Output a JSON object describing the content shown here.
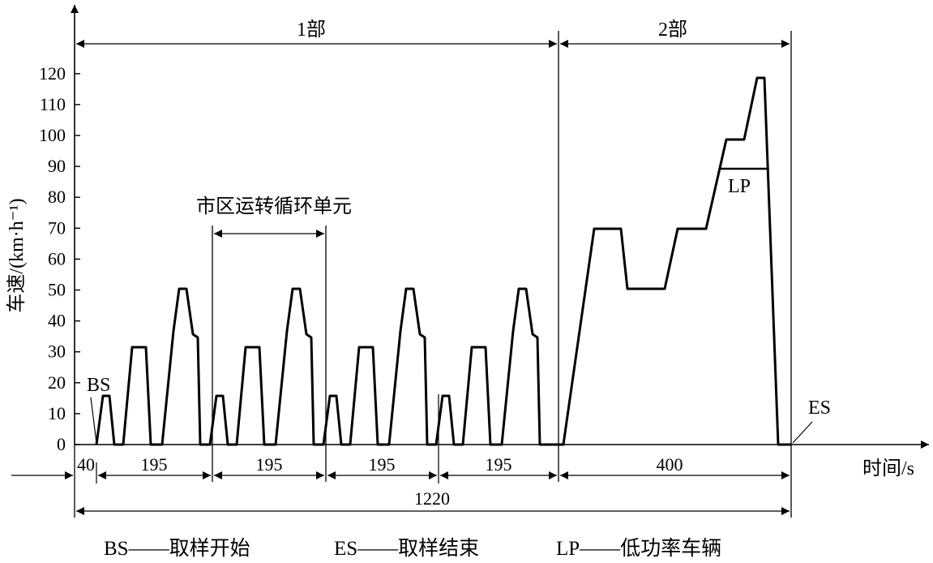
{
  "chart_data": {
    "type": "line",
    "ylabel": "车速/(km·h⁻¹)",
    "xlabel": "时间/s",
    "ylim": [
      0,
      120
    ],
    "yticks": [
      0,
      10,
      20,
      30,
      40,
      50,
      60,
      70,
      80,
      90,
      100,
      110,
      120
    ],
    "part_labels": [
      "1部",
      "2部"
    ],
    "segment_labels": [
      "40",
      "195",
      "195",
      "195",
      "195",
      "400"
    ],
    "total_label": "1220",
    "urban_cycle_label": "市区运转循环单元",
    "annotations": {
      "bs": "BS",
      "es": "ES",
      "lp": "LP"
    },
    "legend": [
      "BS——取样开始",
      "ES——取样结束",
      "LP——低功率车辆"
    ],
    "series": [
      {
        "values": [
          [
            0,
            0
          ],
          [
            40,
            0
          ],
          [
            195,
            0
          ],
          [
            390,
            0
          ],
          [
            585,
            0
          ],
          [
            780,
            0
          ],
          [
            1220,
            0
          ]
        ]
      }
    ]
  }
}
